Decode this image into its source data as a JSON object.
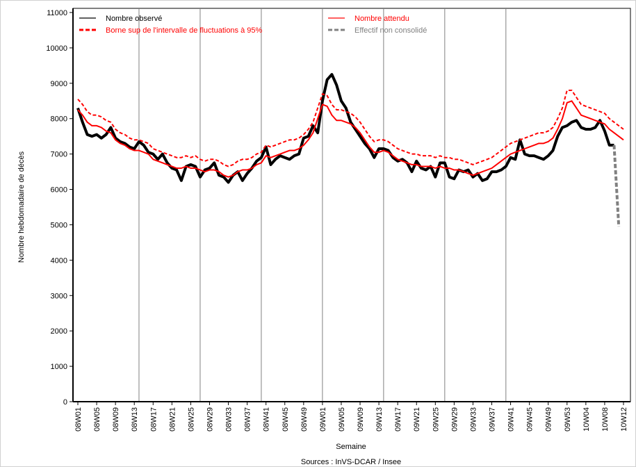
{
  "chart_data": {
    "type": "line",
    "y_label": "Nombre hebdomadaire de décès",
    "x_label": "Semaine",
    "source": "Sources : InVS-DCAR / Insee",
    "legend": "upper left",
    "ylim": [
      0,
      11000
    ],
    "yticks": [
      0,
      1000,
      2000,
      3000,
      4000,
      5000,
      6000,
      7000,
      8000,
      9000,
      10000,
      11000
    ],
    "categories": [
      "08W01",
      null,
      null,
      null,
      "08W05",
      null,
      null,
      null,
      "08W09",
      null,
      null,
      null,
      "08W13",
      null,
      null,
      null,
      "08W17",
      null,
      null,
      null,
      "08W21",
      null,
      null,
      null,
      "08W25",
      null,
      null,
      null,
      "08W29",
      null,
      null,
      null,
      "08W33",
      null,
      null,
      null,
      "08W37",
      null,
      null,
      null,
      "08W41",
      null,
      null,
      null,
      "08W45",
      null,
      null,
      null,
      "08W49",
      null,
      null,
      null,
      "09W01",
      null,
      null,
      null,
      "09W05",
      null,
      null,
      null,
      "09W09",
      null,
      null,
      null,
      "09W13",
      null,
      null,
      null,
      "09W17",
      null,
      null,
      null,
      "09W21",
      null,
      null,
      null,
      "09W25",
      null,
      null,
      null,
      "09W29",
      null,
      null,
      null,
      "09W33",
      null,
      null,
      null,
      "09W37",
      null,
      null,
      null,
      "09W41",
      null,
      null,
      null,
      "09W45",
      null,
      null,
      null,
      "09W49",
      null,
      null,
      null,
      "09W53",
      null,
      null,
      null,
      "10W04",
      null,
      null,
      null,
      "10W08",
      null,
      null,
      null,
      "10W12"
    ],
    "series": [
      {
        "name": "Nombre observé",
        "color": "#000000",
        "line_width": 4,
        "dash": false,
        "values": [
          8300,
          7900,
          7550,
          7500,
          7550,
          7450,
          7550,
          7750,
          7450,
          7350,
          7300,
          7200,
          7150,
          7350,
          7250,
          7050,
          7000,
          6850,
          7000,
          6750,
          6600,
          6550,
          6250,
          6650,
          6700,
          6650,
          6350,
          6550,
          6600,
          6750,
          6400,
          6350,
          6200,
          6400,
          6500,
          6250,
          6450,
          6600,
          6800,
          6900,
          7200,
          6700,
          6850,
          6950,
          6900,
          6850,
          6950,
          7000,
          7450,
          7500,
          7800,
          7600,
          8500,
          9100,
          9250,
          8950,
          8500,
          8300,
          7900,
          7700,
          7500,
          7300,
          7150,
          6900,
          7150,
          7150,
          7100,
          6900,
          6800,
          6850,
          6750,
          6500,
          6800,
          6600,
          6550,
          6650,
          6350,
          6750,
          6750,
          6350,
          6300,
          6550,
          6500,
          6550,
          6350,
          6450,
          6250,
          6300,
          6500,
          6500,
          6550,
          6650,
          6900,
          6850,
          7400,
          7000,
          6950,
          6950,
          6900,
          6850,
          6950,
          7100,
          7500,
          7750,
          7800,
          7900,
          7950,
          7750,
          7700,
          7700,
          7750,
          7950,
          7650,
          7250,
          7250,
          null,
          null
        ]
      },
      {
        "name": "Nombre attendu",
        "color": "#ff0000",
        "line_width": 2,
        "dash": false,
        "values": [
          8250,
          8100,
          7900,
          7800,
          7800,
          7750,
          7650,
          7600,
          7400,
          7300,
          7250,
          7150,
          7100,
          7100,
          7050,
          7000,
          6850,
          6800,
          6750,
          6700,
          6650,
          6600,
          6600,
          6650,
          6600,
          6600,
          6550,
          6500,
          6550,
          6550,
          6500,
          6400,
          6350,
          6400,
          6500,
          6550,
          6550,
          6600,
          6700,
          6750,
          6950,
          6900,
          6950,
          7000,
          7050,
          7100,
          7100,
          7150,
          7250,
          7400,
          7600,
          8000,
          8400,
          8350,
          8100,
          7950,
          7950,
          7900,
          7850,
          7750,
          7600,
          7400,
          7200,
          7050,
          7050,
          7100,
          7050,
          6950,
          6850,
          6800,
          6750,
          6700,
          6700,
          6650,
          6650,
          6650,
          6600,
          6650,
          6600,
          6600,
          6550,
          6550,
          6500,
          6450,
          6400,
          6450,
          6500,
          6550,
          6600,
          6700,
          6800,
          6900,
          7000,
          7050,
          7100,
          7150,
          7200,
          7250,
          7300,
          7300,
          7350,
          7450,
          7700,
          8000,
          8450,
          8500,
          8300,
          8100,
          8050,
          8000,
          7950,
          7900,
          7850,
          7700,
          7600,
          7500,
          7400
        ]
      },
      {
        "name": "Borne sup de l'intervalle de fluctuations à 95%",
        "color": "#ff0000",
        "line_width": 2,
        "dash": true,
        "values": [
          8550,
          8400,
          8200,
          8100,
          8100,
          8050,
          7950,
          7900,
          7700,
          7600,
          7550,
          7450,
          7400,
          7400,
          7350,
          7300,
          7150,
          7100,
          7050,
          7000,
          6950,
          6900,
          6900,
          6950,
          6900,
          6950,
          6850,
          6800,
          6850,
          6850,
          6800,
          6700,
          6650,
          6700,
          6800,
          6850,
          6850,
          6900,
          7000,
          7050,
          7250,
          7200,
          7250,
          7300,
          7350,
          7400,
          7400,
          7450,
          7550,
          7700,
          7900,
          8300,
          8700,
          8650,
          8400,
          8250,
          8250,
          8200,
          8150,
          8050,
          7900,
          7700,
          7500,
          7350,
          7400,
          7400,
          7350,
          7250,
          7150,
          7100,
          7050,
          7000,
          7000,
          6950,
          6950,
          6950,
          6900,
          6950,
          6900,
          6900,
          6850,
          6850,
          6800,
          6750,
          6700,
          6750,
          6800,
          6850,
          6900,
          7000,
          7100,
          7200,
          7300,
          7350,
          7400,
          7450,
          7500,
          7550,
          7600,
          7600,
          7650,
          7750,
          8000,
          8300,
          8800,
          8800,
          8600,
          8400,
          8350,
          8300,
          8250,
          8200,
          8150,
          8000,
          7900,
          7800,
          7700
        ]
      },
      {
        "name": "Effectif non consolidé",
        "color": "#808080",
        "line_width": 4,
        "dash": true,
        "values": [
          null,
          null,
          null,
          null,
          null,
          null,
          null,
          null,
          null,
          null,
          null,
          null,
          null,
          null,
          null,
          null,
          null,
          null,
          null,
          null,
          null,
          null,
          null,
          null,
          null,
          null,
          null,
          null,
          null,
          null,
          null,
          null,
          null,
          null,
          null,
          null,
          null,
          null,
          null,
          null,
          null,
          null,
          null,
          null,
          null,
          null,
          null,
          null,
          null,
          null,
          null,
          null,
          null,
          null,
          null,
          null,
          null,
          null,
          null,
          null,
          null,
          null,
          null,
          null,
          null,
          null,
          null,
          null,
          null,
          null,
          null,
          null,
          null,
          null,
          null,
          null,
          null,
          null,
          null,
          null,
          null,
          null,
          null,
          null,
          null,
          null,
          null,
          null,
          null,
          null,
          null,
          null,
          null,
          null,
          null,
          null,
          null,
          null,
          null,
          null,
          null,
          null,
          null,
          null,
          null,
          null,
          null,
          null,
          null,
          null,
          null,
          null,
          null,
          null,
          7250,
          4950,
          null
        ]
      }
    ]
  }
}
